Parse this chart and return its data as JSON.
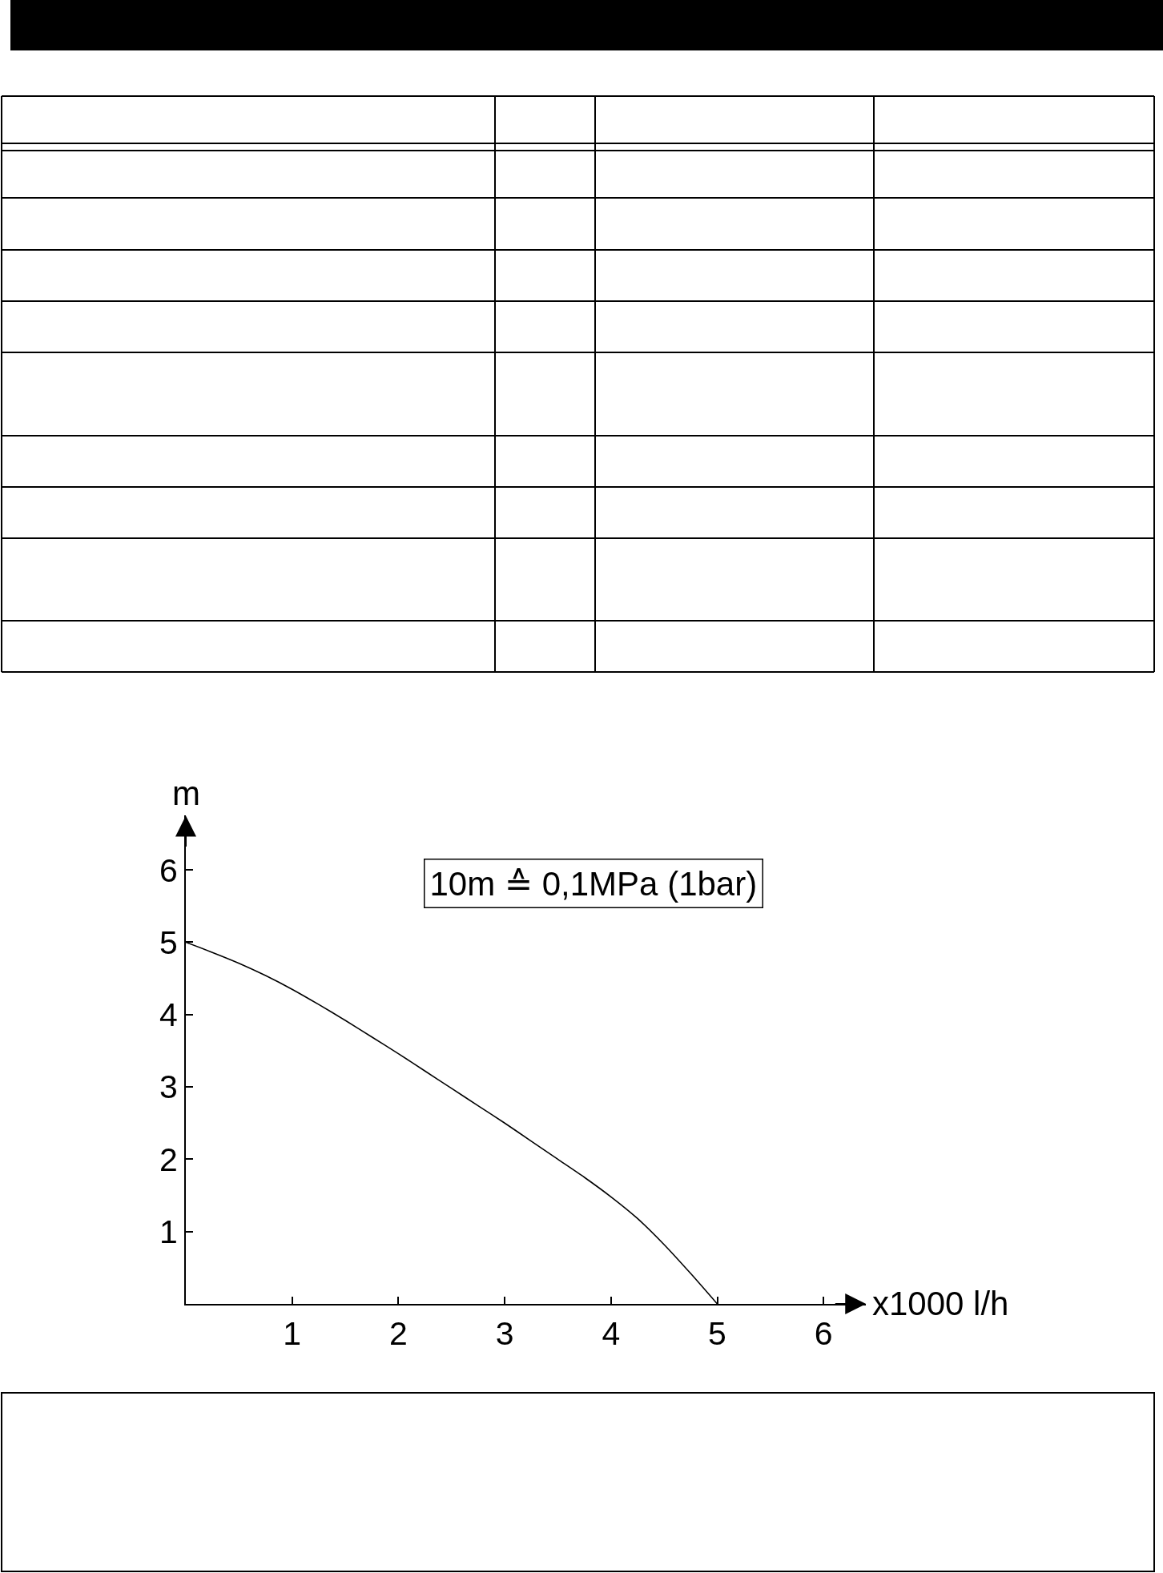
{
  "chart_data": {
    "type": "line",
    "xlabel": "x1000 l/h",
    "ylabel": "m",
    "annotations": [
      "10m ≙ 0,1MPa (1bar)"
    ],
    "x": [
      0,
      0.25,
      0.5,
      0.75,
      1,
      1.25,
      1.5,
      1.75,
      2,
      2.25,
      2.5,
      2.75,
      3,
      3.25,
      3.5,
      3.75,
      4,
      4.25,
      4.5,
      4.75,
      5
    ],
    "series": [
      {
        "color": "#000000",
        "values": [
          5.0,
          4.86,
          4.71,
          4.54,
          4.35,
          4.14,
          3.92,
          3.69,
          3.46,
          3.22,
          2.98,
          2.74,
          2.5,
          2.25,
          2.0,
          1.75,
          1.48,
          1.18,
          0.82,
          0.42,
          0
        ]
      }
    ],
    "xlim": [
      0,
      6.4
    ],
    "ylim": [
      0,
      6.75
    ],
    "xticks": [
      1,
      2,
      3,
      4,
      5,
      6
    ],
    "yticks": [
      1,
      2,
      3,
      4,
      5,
      6
    ],
    "grid": false
  }
}
